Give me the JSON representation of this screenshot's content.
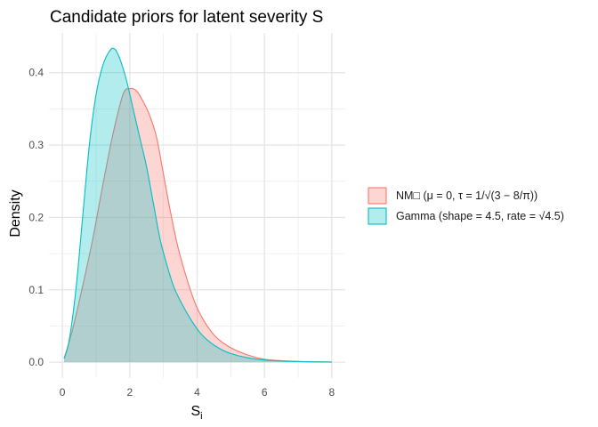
{
  "chart_data": {
    "type": "area",
    "title": "Candidate priors for latent severity S",
    "xlabel_main": "S",
    "xlabel_sub": "i",
    "ylabel": "Density",
    "xlim": [
      -0.4,
      8.4
    ],
    "ylim": [
      -0.022,
      0.455
    ],
    "x_ticks": [
      0,
      2,
      4,
      6,
      8
    ],
    "x_tick_labels": [
      "0",
      "2",
      "4",
      "6",
      "8"
    ],
    "y_ticks": [
      0.0,
      0.1,
      0.2,
      0.3,
      0.4
    ],
    "y_tick_labels": [
      "0.0",
      "0.1",
      "0.2",
      "0.3",
      "0.4"
    ],
    "grid": true,
    "legend_position": "right",
    "series": [
      {
        "name": "NM□ (μ = 0, τ = 1/√(3 − 8/π))",
        "color": "#F8766D",
        "fill": "#F8766D",
        "x": [
          0.05,
          0.3,
          0.6,
          0.9,
          1.2,
          1.5,
          1.8,
          2.0,
          2.2,
          2.4,
          2.6,
          2.8,
          3.0,
          3.2,
          3.4,
          3.6,
          3.8,
          4.0,
          4.3,
          4.6,
          5.0,
          5.5,
          6.0,
          6.5,
          7.0,
          7.5,
          8.0
        ],
        "values": [
          0.005,
          0.045,
          0.105,
          0.17,
          0.245,
          0.315,
          0.37,
          0.378,
          0.375,
          0.36,
          0.34,
          0.31,
          0.26,
          0.21,
          0.165,
          0.13,
          0.1,
          0.075,
          0.05,
          0.033,
          0.02,
          0.01,
          0.004,
          0.002,
          0.001,
          0.0005,
          0.0001
        ]
      },
      {
        "name": "Gamma (shape = 4.5, rate = √4.5)",
        "color": "#00BFC4",
        "fill": "#00BFC4",
        "x": [
          0.05,
          0.2,
          0.4,
          0.6,
          0.8,
          1.0,
          1.2,
          1.4,
          1.55,
          1.7,
          1.9,
          2.1,
          2.3,
          2.5,
          2.7,
          2.9,
          3.1,
          3.3,
          3.5,
          3.8,
          4.1,
          4.4,
          4.7,
          5.0,
          5.5,
          6.0,
          6.5,
          7.0,
          7.5,
          8.0
        ],
        "values": [
          0.005,
          0.03,
          0.1,
          0.2,
          0.3,
          0.37,
          0.41,
          0.43,
          0.433,
          0.42,
          0.39,
          0.35,
          0.31,
          0.27,
          0.22,
          0.17,
          0.135,
          0.105,
          0.085,
          0.06,
          0.04,
          0.027,
          0.018,
          0.012,
          0.006,
          0.003,
          0.0015,
          0.0008,
          0.0004,
          0.0002
        ]
      }
    ]
  }
}
